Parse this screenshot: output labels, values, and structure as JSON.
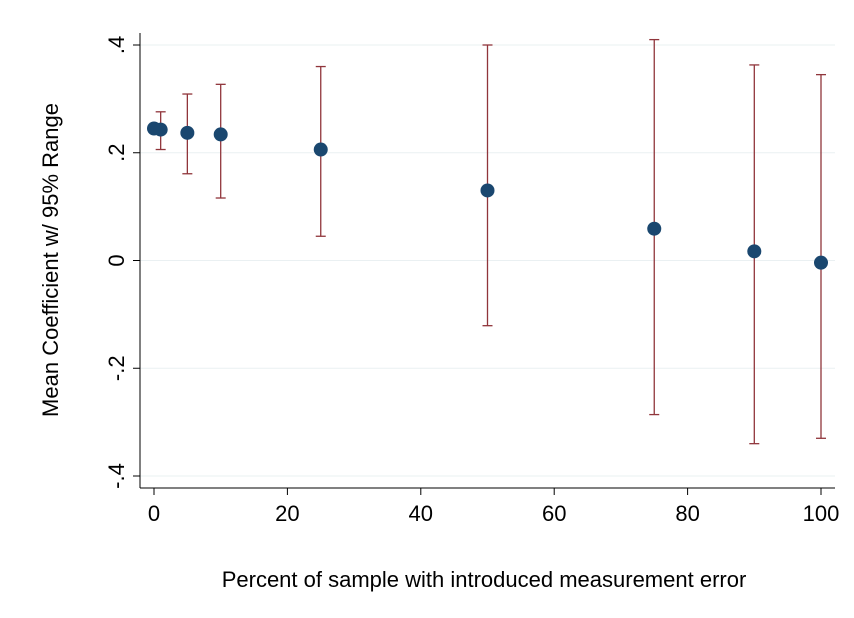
{
  "chart_data": {
    "type": "scatter",
    "title": "",
    "xlabel": "Percent of sample with introduced measurement error",
    "ylabel": "Mean Coefficient w/ 95% Range",
    "xlim": [
      0,
      100
    ],
    "ylim": [
      -0.4,
      0.4
    ],
    "x_ticks": [
      0,
      20,
      40,
      60,
      80,
      100
    ],
    "x_tick_labels": [
      "0",
      "20",
      "40",
      "60",
      "80",
      "100"
    ],
    "y_ticks": [
      -0.4,
      -0.2,
      0,
      0.2,
      0.4
    ],
    "y_tick_labels": [
      "-.4",
      "-.2",
      "0",
      ".2",
      ".4"
    ],
    "grid": true,
    "legend": "none",
    "series": [
      {
        "kind": "mean-with-range",
        "x": [
          0,
          1,
          5,
          10,
          25,
          50,
          75,
          90,
          100
        ],
        "mean": [
          0.245,
          0.243,
          0.237,
          0.234,
          0.206,
          0.13,
          0.059,
          0.017,
          -0.004
        ],
        "lower": [
          0.242,
          0.206,
          0.161,
          0.116,
          0.045,
          -0.121,
          -0.286,
          -0.34,
          -0.33
        ],
        "upper": [
          0.248,
          0.276,
          0.309,
          0.327,
          0.36,
          0.4,
          0.41,
          0.363,
          0.345
        ]
      }
    ],
    "colors": {
      "marker": "#1a476f",
      "range": "#90353b",
      "grid": "#eaf0f2",
      "axis": "#000000"
    }
  }
}
